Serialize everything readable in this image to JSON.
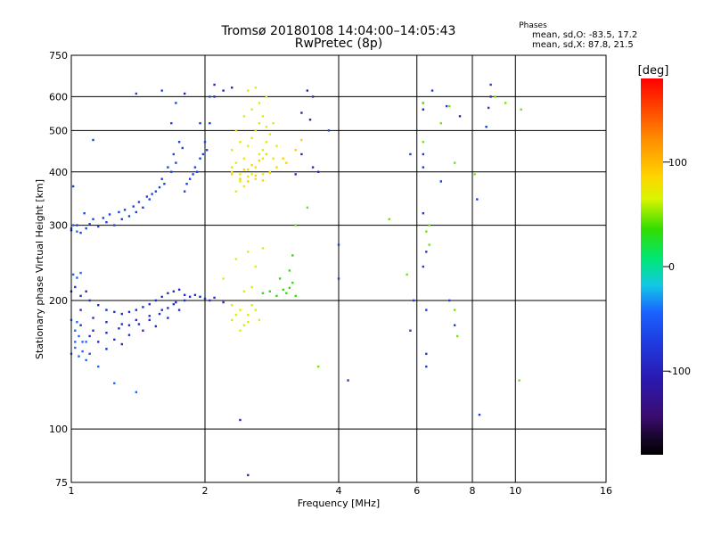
{
  "header": {
    "title_line1": "Tromsø 20180108 14:04:00–14:05:43",
    "title_line2": "RwPretec (8p)",
    "phases_label": "Phases",
    "stats_o": "mean, sd,O: -83.5, 17.2",
    "stats_x": "mean, sd,X:  87.8, 21.5"
  },
  "colors": {
    "ramp": [
      "#000000",
      "#3a0c6e",
      "#1e2fcf",
      "#1a63ff",
      "#12c8e6",
      "#00e676",
      "#33dd00",
      "#d9f500",
      "#ffd400",
      "#ff8c00",
      "#ff0000"
    ]
  },
  "chart_data": {
    "type": "scatter",
    "title": "Tromsø 20180108 14:04:00–14:05:43",
    "subtitle": "RwPretec (8p)",
    "xlabel": "Frequency [MHz]",
    "ylabel": "Stationary phase Virtual Height [km]",
    "x_scale": "log2",
    "y_scale": "log",
    "xlim": [
      1,
      16
    ],
    "ylim": [
      75,
      750
    ],
    "x_ticks": [
      1,
      2,
      4,
      6,
      8,
      10,
      16
    ],
    "x_ticklabels": [
      "1",
      "2",
      "4",
      "6",
      "8",
      "10",
      "16"
    ],
    "y_ticks": [
      75,
      100,
      200,
      300,
      400,
      500,
      600,
      750
    ],
    "y_ticklabels": [
      "75",
      "100",
      "200",
      "300",
      "400",
      "500",
      "600",
      "750"
    ],
    "grid": true,
    "colorbar": {
      "label": "[deg]",
      "range": [
        -180,
        180
      ],
      "ticks": [
        100,
        0,
        -100
      ],
      "ticklabels": [
        "100",
        "0",
        "-100"
      ]
    },
    "series": [
      {
        "phase": -95,
        "points": [
          [
            1.0,
            292
          ],
          [
            1.03,
            300
          ],
          [
            1.05,
            288
          ],
          [
            1.08,
            295
          ],
          [
            1.1,
            302
          ],
          [
            1.15,
            298
          ],
          [
            1.2,
            305
          ],
          [
            1.25,
            300
          ],
          [
            1.3,
            310
          ],
          [
            1.35,
            315
          ],
          [
            1.4,
            322
          ],
          [
            1.45,
            330
          ],
          [
            1.5,
            345
          ],
          [
            1.55,
            360
          ],
          [
            1.6,
            385
          ],
          [
            1.65,
            410
          ],
          [
            1.7,
            440
          ],
          [
            1.75,
            470
          ],
          [
            1.8,
            360
          ],
          [
            1.85,
            385
          ],
          [
            1.9,
            410
          ],
          [
            1.95,
            430
          ],
          [
            2.0,
            470
          ],
          [
            2.05,
            520
          ],
          [
            1.12,
            310
          ],
          [
            1.22,
            318
          ],
          [
            1.32,
            326
          ],
          [
            1.42,
            340
          ],
          [
            1.52,
            355
          ],
          [
            1.62,
            375
          ],
          [
            1.72,
            420
          ],
          [
            1.82,
            375
          ],
          [
            1.92,
            400
          ],
          [
            2.02,
            450
          ],
          [
            1.07,
            320
          ],
          [
            1.18,
            312
          ],
          [
            1.28,
            322
          ],
          [
            1.38,
            332
          ],
          [
            1.48,
            350
          ],
          [
            1.58,
            368
          ],
          [
            1.68,
            400
          ],
          [
            1.78,
            455
          ],
          [
            1.88,
            395
          ],
          [
            1.98,
            440
          ],
          [
            1.68,
            520
          ],
          [
            1.72,
            580
          ],
          [
            1.95,
            520
          ],
          [
            2.05,
            600
          ],
          [
            1.4,
            610
          ],
          [
            1.6,
            620
          ],
          [
            1.01,
            370
          ],
          [
            1.12,
            475
          ]
        ]
      },
      {
        "phase": -110,
        "points": [
          [
            1.0,
            210
          ],
          [
            1.02,
            215
          ],
          [
            1.05,
            205
          ],
          [
            1.08,
            210
          ],
          [
            1.1,
            200
          ],
          [
            1.15,
            195
          ],
          [
            1.2,
            190
          ],
          [
            1.25,
            188
          ],
          [
            1.3,
            186
          ],
          [
            1.35,
            188
          ],
          [
            1.4,
            190
          ],
          [
            1.45,
            193
          ],
          [
            1.5,
            196
          ],
          [
            1.55,
            200
          ],
          [
            1.6,
            204
          ],
          [
            1.65,
            208
          ],
          [
            1.7,
            210
          ],
          [
            1.75,
            212
          ],
          [
            1.8,
            206
          ],
          [
            1.85,
            204
          ],
          [
            1.9,
            206
          ],
          [
            1.95,
            204
          ],
          [
            2.0,
            202
          ],
          [
            2.05,
            200
          ],
          [
            2.1,
            203
          ],
          [
            2.2,
            198
          ],
          [
            1.12,
            170
          ],
          [
            1.2,
            168
          ],
          [
            1.28,
            172
          ],
          [
            1.35,
            175
          ],
          [
            1.42,
            176
          ],
          [
            1.5,
            180
          ],
          [
            1.58,
            186
          ],
          [
            1.65,
            192
          ],
          [
            1.72,
            198
          ],
          [
            1.05,
            175
          ],
          [
            1.12,
            182
          ],
          [
            1.2,
            178
          ],
          [
            1.3,
            176
          ],
          [
            1.4,
            180
          ],
          [
            1.5,
            184
          ],
          [
            1.6,
            190
          ],
          [
            1.7,
            196
          ],
          [
            1.8,
            200
          ],
          [
            1.15,
            160
          ],
          [
            1.25,
            162
          ],
          [
            1.35,
            166
          ],
          [
            1.45,
            170
          ],
          [
            1.55,
            174
          ],
          [
            1.65,
            182
          ],
          [
            1.75,
            190
          ],
          [
            1.1,
            150
          ],
          [
            1.2,
            154
          ],
          [
            1.3,
            158
          ],
          [
            1.05,
            190
          ],
          [
            1.1,
            165
          ]
        ]
      },
      {
        "phase": -70,
        "points": [
          [
            1.0,
            150
          ],
          [
            1.02,
            155
          ],
          [
            1.04,
            148
          ],
          [
            1.06,
            152
          ],
          [
            1.08,
            145
          ],
          [
            1.1,
            150
          ],
          [
            1.02,
            170
          ],
          [
            1.04,
            165
          ],
          [
            1.06,
            160
          ],
          [
            1.0,
            180
          ],
          [
            1.03,
            178
          ],
          [
            1.01,
            230
          ],
          [
            1.03,
            226
          ],
          [
            1.05,
            232
          ],
          [
            1.0,
            295
          ],
          [
            1.03,
            290
          ],
          [
            1.01,
            300
          ],
          [
            1.08,
            160
          ],
          [
            1.02,
            160
          ],
          [
            1.15,
            140
          ],
          [
            1.25,
            128
          ],
          [
            1.4,
            122
          ]
        ]
      },
      {
        "phase": 85,
        "points": [
          [
            2.3,
            400
          ],
          [
            2.35,
            420
          ],
          [
            2.4,
            380
          ],
          [
            2.45,
            430
          ],
          [
            2.5,
            460
          ],
          [
            2.55,
            480
          ],
          [
            2.6,
            500
          ],
          [
            2.65,
            520
          ],
          [
            2.7,
            450
          ],
          [
            2.75,
            470
          ],
          [
            2.8,
            400
          ],
          [
            2.85,
            430
          ],
          [
            2.9,
            460
          ],
          [
            2.3,
            450
          ],
          [
            2.4,
            470
          ],
          [
            2.5,
            390
          ],
          [
            2.6,
            410
          ],
          [
            2.7,
            430
          ],
          [
            2.8,
            490
          ],
          [
            2.35,
            500
          ],
          [
            2.45,
            540
          ],
          [
            2.55,
            560
          ],
          [
            2.65,
            580
          ],
          [
            2.75,
            600
          ],
          [
            2.4,
            395
          ],
          [
            2.5,
            405
          ],
          [
            2.6,
            385
          ],
          [
            2.7,
            395
          ],
          [
            2.3,
            410
          ],
          [
            2.35,
            360
          ],
          [
            2.45,
            370
          ],
          [
            2.55,
            395
          ],
          [
            2.65,
            440
          ],
          [
            2.75,
            510
          ],
          [
            2.6,
            630
          ],
          [
            2.5,
            620
          ],
          [
            2.7,
            540
          ],
          [
            2.85,
            520
          ]
        ]
      },
      {
        "phase": 110,
        "points": [
          [
            2.3,
            395
          ],
          [
            2.4,
            385
          ],
          [
            2.5,
            380
          ],
          [
            2.6,
            392
          ],
          [
            2.7,
            382
          ],
          [
            2.8,
            398
          ],
          [
            2.9,
            410
          ],
          [
            3.0,
            430
          ],
          [
            3.05,
            420
          ],
          [
            3.2,
            450
          ],
          [
            3.3,
            475
          ],
          [
            2.45,
            405
          ],
          [
            2.55,
            415
          ],
          [
            2.65,
            425
          ],
          [
            2.75,
            440
          ]
        ]
      },
      {
        "phase": 35,
        "points": [
          [
            2.8,
            210
          ],
          [
            2.9,
            205
          ],
          [
            3.0,
            212
          ],
          [
            3.05,
            208
          ],
          [
            3.1,
            214
          ],
          [
            3.15,
            220
          ],
          [
            3.2,
            205
          ],
          [
            3.1,
            235
          ],
          [
            3.15,
            255
          ],
          [
            2.7,
            208
          ],
          [
            2.95,
            225
          ]
        ]
      },
      {
        "phase": 80,
        "points": [
          [
            2.3,
            180
          ],
          [
            2.35,
            185
          ],
          [
            2.4,
            190
          ],
          [
            2.45,
            175
          ],
          [
            2.5,
            185
          ],
          [
            2.55,
            195
          ],
          [
            2.6,
            190
          ],
          [
            2.65,
            180
          ],
          [
            2.4,
            170
          ],
          [
            2.5,
            178
          ],
          [
            2.3,
            195
          ],
          [
            2.55,
            215
          ],
          [
            2.6,
            240
          ],
          [
            2.5,
            260
          ],
          [
            2.7,
            265
          ],
          [
            2.35,
            250
          ],
          [
            2.2,
            225
          ],
          [
            2.45,
            210
          ]
        ]
      },
      {
        "phase": -100,
        "points": [
          [
            4.0,
            270
          ],
          [
            4.0,
            225
          ],
          [
            3.8,
            500
          ],
          [
            4.2,
            130
          ],
          [
            5.8,
            170
          ],
          [
            5.9,
            200
          ],
          [
            6.2,
            410
          ],
          [
            6.2,
            440
          ],
          [
            6.2,
            580
          ],
          [
            6.2,
            320
          ],
          [
            6.3,
            260
          ],
          [
            6.2,
            240
          ],
          [
            6.3,
            190
          ],
          [
            6.3,
            150
          ],
          [
            6.3,
            140
          ],
          [
            6.5,
            620
          ],
          [
            6.8,
            380
          ],
          [
            7.0,
            570
          ],
          [
            7.3,
            175
          ],
          [
            7.1,
            200
          ],
          [
            8.2,
            345
          ],
          [
            8.6,
            510
          ],
          [
            8.7,
            565
          ],
          [
            8.8,
            640
          ],
          [
            8.3,
            108
          ],
          [
            5.8,
            440
          ]
        ]
      },
      {
        "phase": 50,
        "points": [
          [
            6.2,
            580
          ],
          [
            6.2,
            470
          ],
          [
            6.4,
            300
          ],
          [
            6.8,
            520
          ],
          [
            7.1,
            570
          ],
          [
            7.3,
            420
          ],
          [
            7.3,
            190
          ],
          [
            7.4,
            165
          ],
          [
            8.1,
            395
          ],
          [
            9.0,
            600
          ],
          [
            9.5,
            580
          ],
          [
            3.6,
            140
          ],
          [
            5.2,
            310
          ],
          [
            5.7,
            230
          ],
          [
            3.2,
            300
          ],
          [
            3.4,
            330
          ],
          [
            6.3,
            290
          ],
          [
            6.4,
            270
          ],
          [
            10.2,
            130
          ],
          [
            10.3,
            560
          ]
        ]
      },
      {
        "phase": -115,
        "points": [
          [
            3.4,
            620
          ],
          [
            3.5,
            600
          ],
          [
            3.3,
            550
          ],
          [
            3.45,
            530
          ],
          [
            3.3,
            440
          ],
          [
            3.5,
            410
          ],
          [
            3.6,
            400
          ],
          [
            3.2,
            395
          ],
          [
            2.4,
            105
          ],
          [
            2.5,
            78
          ],
          [
            2.2,
            620
          ],
          [
            2.3,
            630
          ],
          [
            2.1,
            600
          ],
          [
            1.8,
            610
          ],
          [
            2.1,
            640
          ],
          [
            6.2,
            560
          ],
          [
            7.5,
            540
          ],
          [
            8.8,
            600
          ]
        ]
      }
    ]
  }
}
